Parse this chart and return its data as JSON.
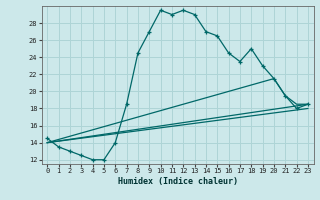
{
  "title": "",
  "xlabel": "Humidex (Indice chaleur)",
  "ylabel": "",
  "bg_color": "#cce8ea",
  "grid_color": "#aed4d6",
  "line_color": "#006868",
  "xlim": [
    -0.5,
    23.5
  ],
  "ylim": [
    11.5,
    30
  ],
  "yticks": [
    12,
    14,
    16,
    18,
    20,
    22,
    24,
    26,
    28
  ],
  "xticks": [
    0,
    1,
    2,
    3,
    4,
    5,
    6,
    7,
    8,
    9,
    10,
    11,
    12,
    13,
    14,
    15,
    16,
    17,
    18,
    19,
    20,
    21,
    22,
    23
  ],
  "series0_x": [
    0,
    1,
    2,
    3,
    4,
    5,
    6,
    7,
    8,
    9,
    10,
    11,
    12,
    13,
    14,
    15,
    16,
    17,
    18,
    19,
    20,
    21,
    22,
    23
  ],
  "series0_y": [
    14.5,
    13.5,
    13.0,
    12.5,
    12.0,
    12.0,
    14.0,
    18.5,
    24.5,
    27.0,
    29.5,
    29.0,
    29.5,
    29.0,
    27.0,
    26.5,
    24.5,
    23.5,
    25.0,
    23.0,
    21.5,
    19.5,
    18.0,
    18.5
  ],
  "series1_x": [
    0,
    23
  ],
  "series1_y": [
    14.0,
    18.5
  ],
  "series2_x": [
    0,
    23
  ],
  "series2_y": [
    14.0,
    18.0
  ],
  "series3_x": [
    0,
    20,
    21,
    22,
    23
  ],
  "series3_y": [
    14.0,
    21.5,
    19.5,
    18.5,
    18.5
  ]
}
